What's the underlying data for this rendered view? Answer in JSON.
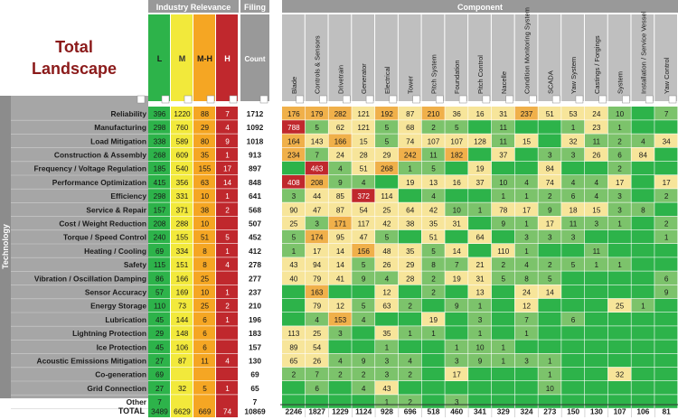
{
  "page": {
    "title_line1": "Total",
    "title_line2": "Landscape",
    "industry_header": "Industry Relevance",
    "filing_header": "Filing",
    "count_label": "Count",
    "component_header": "Component",
    "technology_label": "Technology",
    "total_label": "TOTAL"
  },
  "colors": {
    "title_red": "#8b1a1a",
    "header_gray": "#999999",
    "side_gray": "#a6a6a6",
    "ind_L": "#2db34a",
    "ind_M": "#f2e93b",
    "ind_MH": "#f5a623",
    "ind_H": "#c0282d",
    "heat_green": "#2db34a",
    "heat_yellow": "#f7e59a",
    "heat_orange": "#f0b04a",
    "heat_red": "#c0282d"
  },
  "chart_data": {
    "type": "heatmap",
    "industry_columns": [
      "L",
      "M",
      "M-H",
      "H"
    ],
    "rows": [
      "Reliability",
      "Manufacturing",
      "Load Mitigation",
      "Construction & Assembly",
      "Frequency / Voltage Regulation",
      "Performance Optimization",
      "Efficiency",
      "Service & Repair",
      "Cost / Weight Reduction",
      "Torque / Speed Control",
      "Heating / Cooling",
      "Safety",
      "Vibration / Oscillation Damping",
      "Sensor Accuracy",
      "Energy Storage",
      "Lubrication",
      "Lightning Protection",
      "Ice Protection",
      "Acoustic Emissions Mitigation",
      "Co-generation",
      "Grid Connection",
      "Other"
    ],
    "industry": [
      [
        "396",
        "1220",
        "88",
        "7"
      ],
      [
        "298",
        "760",
        "29",
        "4"
      ],
      [
        "338",
        "589",
        "80",
        "9"
      ],
      [
        "268",
        "609",
        "35",
        "1"
      ],
      [
        "185",
        "540",
        "155",
        "17"
      ],
      [
        "415",
        "356",
        "63",
        "14"
      ],
      [
        "298",
        "331",
        "10",
        "1"
      ],
      [
        "157",
        "371",
        "38",
        "2"
      ],
      [
        "208",
        "288",
        "10",
        ""
      ],
      [
        "240",
        "155",
        "51",
        "5"
      ],
      [
        "69",
        "334",
        "8",
        "1"
      ],
      [
        "115",
        "151",
        "8",
        "4"
      ],
      [
        "86",
        "166",
        "25",
        ""
      ],
      [
        "57",
        "169",
        "10",
        "1"
      ],
      [
        "110",
        "73",
        "25",
        "2"
      ],
      [
        "45",
        "144",
        "6",
        "1"
      ],
      [
        "29",
        "148",
        "6",
        ""
      ],
      [
        "45",
        "106",
        "6",
        ""
      ],
      [
        "27",
        "87",
        "11",
        "4"
      ],
      [
        "69",
        "",
        "",
        ""
      ],
      [
        "27",
        "32",
        "5",
        "1"
      ],
      [
        "7",
        "",
        "",
        ""
      ]
    ],
    "filing_count": [
      "1712",
      "1092",
      "1018",
      "913",
      "897",
      "848",
      "641",
      "568",
      "507",
      "452",
      "412",
      "278",
      "277",
      "237",
      "210",
      "196",
      "183",
      "157",
      "130",
      "69",
      "65",
      "7"
    ],
    "components": [
      "Blade",
      "Controls & Sensors",
      "Drivetrain",
      "Generator",
      "Electrical",
      "Tower",
      "Pitch System",
      "Foundation",
      "Pitch Control",
      "Nacelle",
      "Condition Monitoring System",
      "SCADA",
      "Yaw System",
      "Castings / Forgings",
      "System",
      "Installation / Service Vessel",
      "Yaw Control"
    ],
    "cells": [
      [
        "176",
        "179",
        "282",
        "121",
        "192",
        "87",
        "210",
        "36",
        "16",
        "31",
        "237",
        "51",
        "53",
        "24",
        "10",
        "",
        "7"
      ],
      [
        "788",
        "5",
        "62",
        "121",
        "5",
        "68",
        "2",
        "5",
        "",
        "11",
        "",
        "",
        "1",
        "23",
        "1",
        "",
        ""
      ],
      [
        "164",
        "143",
        "166",
        "15",
        "5",
        "74",
        "107",
        "107",
        "128",
        "11",
        "15",
        "",
        "32",
        "11",
        "2",
        "4",
        "34"
      ],
      [
        "234",
        "7",
        "24",
        "28",
        "29",
        "242",
        "11",
        "182",
        "",
        "37",
        "",
        "3",
        "3",
        "26",
        "6",
        "84",
        ""
      ],
      [
        "",
        "463",
        "4",
        "51",
        "268",
        "1",
        "5",
        "",
        "19",
        "",
        "",
        "84",
        "",
        "",
        "2",
        "",
        ""
      ],
      [
        "408",
        "208",
        "9",
        "4",
        "",
        "19",
        "13",
        "16",
        "37",
        "10",
        "4",
        "74",
        "4",
        "4",
        "17",
        "",
        "17"
      ],
      [
        "3",
        "44",
        "85",
        "372",
        "114",
        "",
        "4",
        "",
        "",
        "1",
        "1",
        "2",
        "6",
        "4",
        "3",
        "",
        "2"
      ],
      [
        "90",
        "47",
        "87",
        "54",
        "25",
        "64",
        "42",
        "10",
        "1",
        "78",
        "17",
        "9",
        "18",
        "15",
        "3",
        "8",
        ""
      ],
      [
        "25",
        "3",
        "171",
        "117",
        "42",
        "38",
        "35",
        "31",
        "",
        "9",
        "1",
        "17",
        "11",
        "3",
        "1",
        "",
        "2"
      ],
      [
        "5",
        "174",
        "95",
        "47",
        "5",
        "",
        "51",
        "",
        "64",
        "",
        "3",
        "3",
        "3",
        "",
        "",
        "",
        "1"
      ],
      [
        "1",
        "17",
        "14",
        "156",
        "48",
        "35",
        "5",
        "14",
        "",
        "110",
        "1",
        "",
        "",
        "11",
        "",
        "",
        ""
      ],
      [
        "43",
        "94",
        "14",
        "5",
        "26",
        "29",
        "8",
        "7",
        "21",
        "2",
        "4",
        "2",
        "5",
        "1",
        "1",
        "",
        ""
      ],
      [
        "40",
        "79",
        "41",
        "9",
        "4",
        "28",
        "2",
        "19",
        "31",
        "5",
        "8",
        "5",
        "",
        "",
        "",
        "",
        "6"
      ],
      [
        "",
        "163",
        "",
        "",
        "12",
        "",
        "2",
        "",
        "13",
        "",
        "24",
        "14",
        "",
        "",
        "",
        "",
        "9"
      ],
      [
        "",
        "79",
        "12",
        "5",
        "63",
        "2",
        "",
        "9",
        "1",
        "",
        "12",
        "",
        "",
        "",
        "25",
        "1",
        ""
      ],
      [
        "",
        "4",
        "153",
        "4",
        "",
        "",
        "19",
        "",
        "3",
        "",
        "7",
        "",
        "6",
        "",
        "",
        "",
        ""
      ],
      [
        "113",
        "25",
        "3",
        "",
        "35",
        "1",
        "1",
        "",
        "1",
        "",
        "1",
        "",
        "",
        "",
        "",
        "",
        ""
      ],
      [
        "89",
        "54",
        "",
        "",
        "1",
        "",
        "",
        "1",
        "10",
        "1",
        "",
        "",
        "",
        "",
        "",
        "",
        ""
      ],
      [
        "65",
        "26",
        "4",
        "9",
        "3",
        "4",
        "",
        "3",
        "9",
        "1",
        "3",
        "1",
        "",
        "",
        "",
        "",
        ""
      ],
      [
        "2",
        "7",
        "2",
        "2",
        "3",
        "2",
        "",
        "17",
        "",
        "",
        "",
        "1",
        "",
        "",
        "32",
        "",
        ""
      ],
      [
        "",
        "6",
        "",
        "4",
        "43",
        "",
        "",
        "",
        "",
        "",
        "",
        "10",
        "",
        "",
        "",
        "",
        ""
      ],
      [
        "",
        "",
        "",
        "",
        "1",
        "2",
        "",
        "3",
        "",
        "",
        "",
        "",
        "",
        "",
        "",
        "",
        ""
      ]
    ],
    "totals": {
      "industry": [
        "3489",
        "6629",
        "669",
        "74"
      ],
      "filing": "10869",
      "components": [
        "2246",
        "1827",
        "1229",
        "1124",
        "928",
        "696",
        "518",
        "460",
        "341",
        "329",
        "324",
        "273",
        "150",
        "130",
        "107",
        "106",
        "81"
      ]
    }
  }
}
